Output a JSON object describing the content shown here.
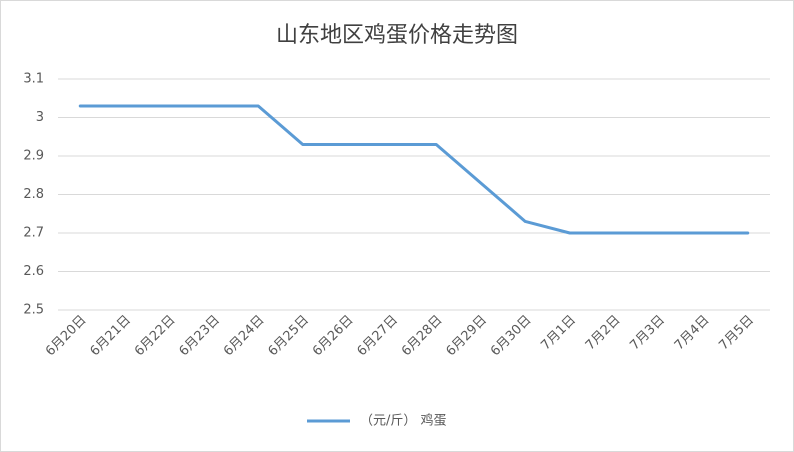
{
  "chart_data": {
    "type": "line",
    "title": "山东地区鸡蛋价格走势图",
    "categories": [
      "6月20日",
      "6月21日",
      "6月22日",
      "6月23日",
      "6月24日",
      "6月25日",
      "6月26日",
      "6月27日",
      "6月28日",
      "6月29日",
      "6月30日",
      "7月1日",
      "7月2日",
      "7月3日",
      "7月4日",
      "7月5日"
    ],
    "series": [
      {
        "name": "（元/斤） 鸡蛋",
        "color": "#5b9bd5",
        "values": [
          3.03,
          3.03,
          3.03,
          3.03,
          3.03,
          2.93,
          2.93,
          2.93,
          2.93,
          2.83,
          2.73,
          2.7,
          2.7,
          2.7,
          2.7,
          2.7
        ]
      }
    ],
    "ylim": [
      2.5,
      3.1
    ],
    "yticks": [
      2.5,
      2.6,
      2.7,
      2.8,
      2.9,
      3,
      3.1
    ],
    "grid": true,
    "legend": "bottom"
  }
}
